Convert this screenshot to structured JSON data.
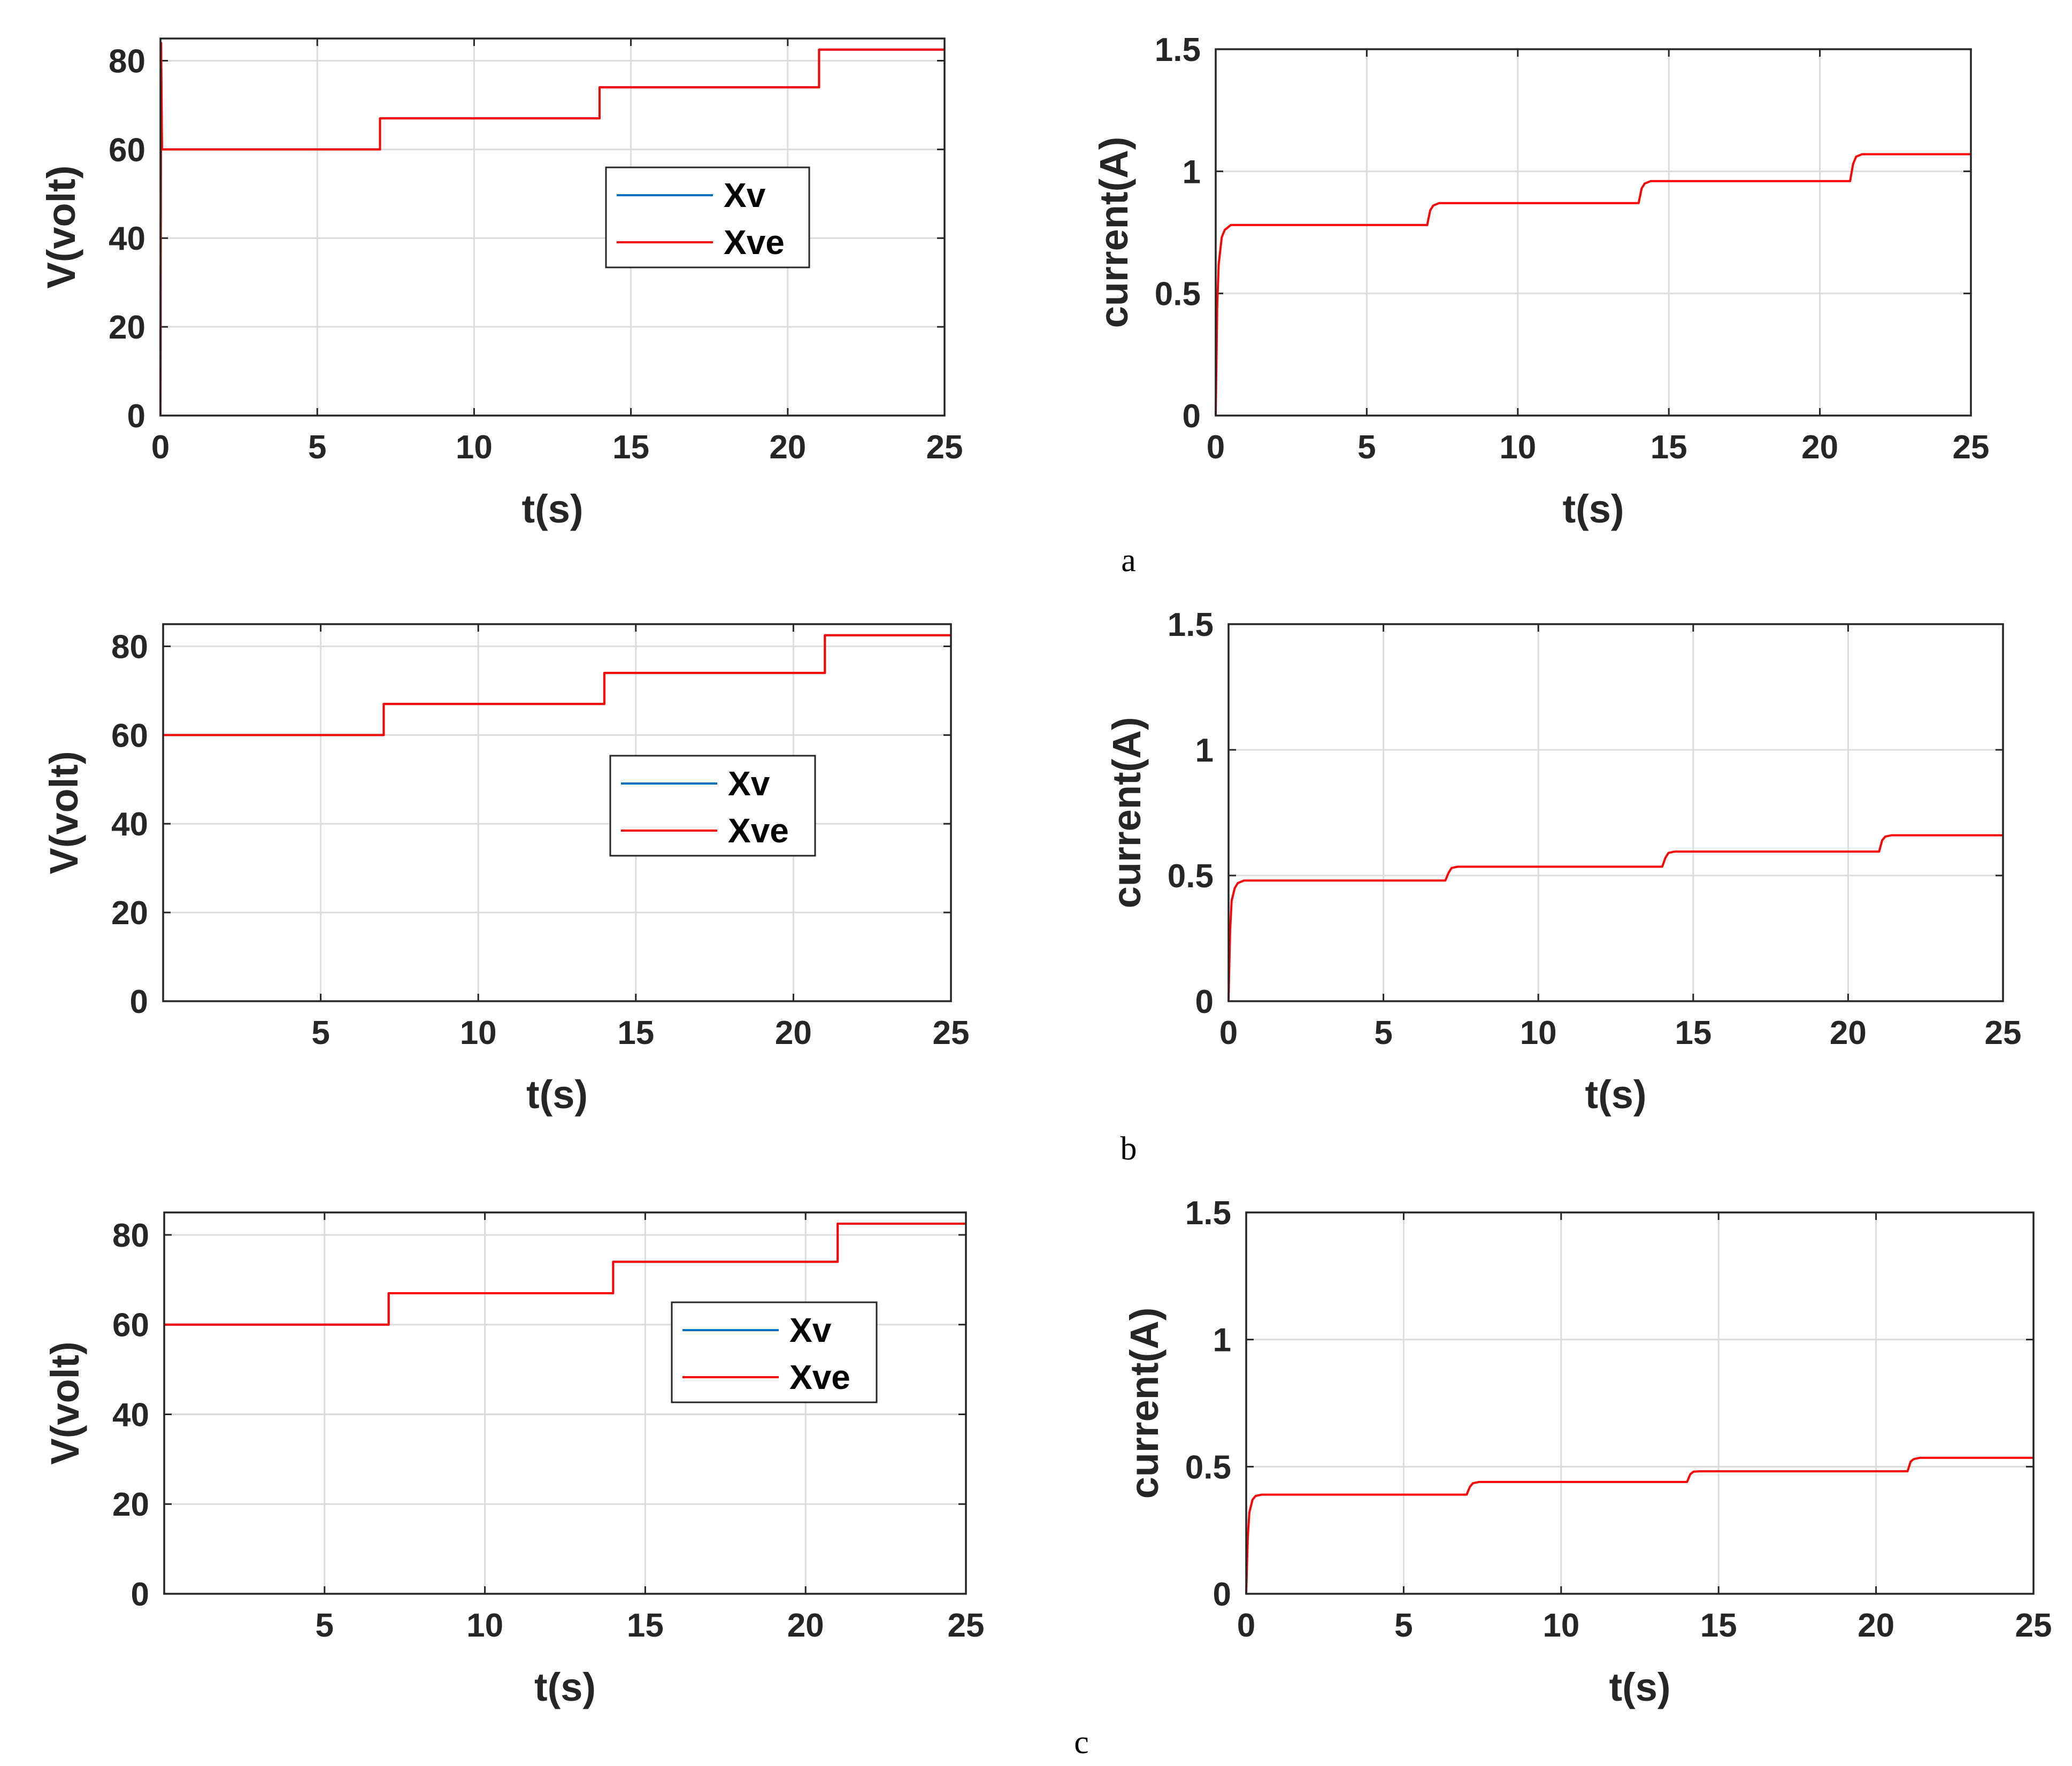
{
  "figure": {
    "captions": [
      "a",
      "b",
      "c"
    ]
  },
  "colors": {
    "Xv": "#0072BD",
    "Xve": "#FF0000",
    "grid": "#dcdcdc",
    "axis": "#262626"
  },
  "chart_data": [
    {
      "id": "a-voltage",
      "type": "line",
      "xlabel": "t(s)",
      "ylabel": "V(volt)",
      "xlim": [
        0,
        25
      ],
      "ylim": [
        0,
        85
      ],
      "xticks": [
        "0",
        "5",
        "10",
        "15",
        "20",
        "25"
      ],
      "yticks": [
        "0",
        "20",
        "40",
        "60",
        "80"
      ],
      "legend": {
        "entries": [
          "Xv",
          "Xve"
        ],
        "placement": "center-right"
      },
      "series": [
        {
          "name": "Xv",
          "x": [
            0,
            0.02,
            0.05,
            7,
            7,
            14,
            14,
            21,
            21,
            25
          ],
          "values": [
            0,
            84,
            60,
            60,
            67,
            67,
            74,
            74,
            82.5,
            82.5
          ]
        },
        {
          "name": "Xve",
          "x": [
            0,
            0.02,
            0.05,
            7,
            7,
            14,
            14,
            21,
            21,
            25
          ],
          "values": [
            0,
            84,
            60,
            60,
            67,
            67,
            74,
            74,
            82.5,
            82.5
          ]
        }
      ]
    },
    {
      "id": "a-current",
      "type": "line",
      "xlabel": "t(s)",
      "ylabel": "current(A)",
      "xlim": [
        0,
        25
      ],
      "ylim": [
        0,
        1.5
      ],
      "xticks": [
        "0",
        "5",
        "10",
        "15",
        "20",
        "25"
      ],
      "yticks": [
        "0",
        "0.5",
        "1",
        "1.5"
      ],
      "series": [
        {
          "name": "Xve",
          "x": [
            0,
            0.05,
            0.1,
            0.2,
            0.3,
            0.5,
            7,
            7.1,
            7.2,
            7.4,
            14,
            14.1,
            14.2,
            14.4,
            21,
            21.1,
            21.2,
            21.4,
            25
          ],
          "values": [
            0,
            0.45,
            0.62,
            0.73,
            0.76,
            0.78,
            0.78,
            0.84,
            0.86,
            0.87,
            0.87,
            0.93,
            0.95,
            0.96,
            0.96,
            1.03,
            1.06,
            1.07,
            1.07
          ]
        }
      ]
    },
    {
      "id": "b-voltage",
      "type": "line",
      "xlabel": "t(s)",
      "ylabel": "V(volt)",
      "xlim": [
        0,
        25
      ],
      "ylim": [
        0,
        85
      ],
      "xticks": [
        "5",
        "10",
        "15",
        "20",
        "25"
      ],
      "yticks": [
        "0",
        "20",
        "40",
        "60",
        "80"
      ],
      "legend": {
        "entries": [
          "Xv",
          "Xve"
        ],
        "placement": "center-right"
      },
      "series": [
        {
          "name": "Xv",
          "x": [
            0,
            7,
            7,
            14,
            14,
            21,
            21,
            25
          ],
          "values": [
            60,
            60,
            67,
            67,
            74,
            74,
            82.5,
            82.5
          ]
        },
        {
          "name": "Xve",
          "x": [
            0,
            7,
            7,
            14,
            14,
            21,
            21,
            25
          ],
          "values": [
            60,
            60,
            67,
            67,
            74,
            74,
            82.5,
            82.5
          ]
        }
      ]
    },
    {
      "id": "b-current",
      "type": "line",
      "xlabel": "t(s)",
      "ylabel": "current(A)",
      "xlim": [
        0,
        25
      ],
      "ylim": [
        0,
        1.5
      ],
      "xticks": [
        "0",
        "5",
        "10",
        "15",
        "20",
        "25"
      ],
      "yticks": [
        "0",
        "0.5",
        "1",
        "1.5"
      ],
      "series": [
        {
          "name": "Xve",
          "x": [
            0,
            0.05,
            0.1,
            0.2,
            0.3,
            0.5,
            7,
            7.1,
            7.2,
            7.4,
            14,
            14.1,
            14.2,
            14.4,
            21,
            21.1,
            21.2,
            21.4,
            25
          ],
          "values": [
            0,
            0.28,
            0.4,
            0.45,
            0.47,
            0.48,
            0.48,
            0.51,
            0.53,
            0.535,
            0.535,
            0.57,
            0.59,
            0.595,
            0.595,
            0.64,
            0.655,
            0.66,
            0.66
          ]
        }
      ]
    },
    {
      "id": "c-voltage",
      "type": "line",
      "xlabel": "t(s)",
      "ylabel": "V(volt)",
      "xlim": [
        0,
        25
      ],
      "ylim": [
        0,
        85
      ],
      "xticks": [
        "5",
        "10",
        "15",
        "20",
        "25"
      ],
      "yticks": [
        "0",
        "20",
        "40",
        "60",
        "80"
      ],
      "legend": {
        "entries": [
          "Xv",
          "Xve"
        ],
        "placement": "center-right"
      },
      "series": [
        {
          "name": "Xv",
          "x": [
            0,
            7,
            7,
            14,
            14,
            21,
            21,
            25
          ],
          "values": [
            60,
            60,
            67,
            67,
            74,
            74,
            82.5,
            82.5
          ]
        },
        {
          "name": "Xve",
          "x": [
            0,
            7,
            7,
            14,
            14,
            21,
            21,
            25
          ],
          "values": [
            60,
            60,
            67,
            67,
            74,
            74,
            82.5,
            82.5
          ]
        }
      ]
    },
    {
      "id": "c-current",
      "type": "line",
      "xlabel": "t(s)",
      "ylabel": "current(A)",
      "xlim": [
        0,
        25
      ],
      "ylim": [
        0,
        1.5
      ],
      "xticks": [
        "0",
        "5",
        "10",
        "15",
        "20",
        "25"
      ],
      "yticks": [
        "0",
        "0.5",
        "1",
        "1.5"
      ],
      "series": [
        {
          "name": "Xve",
          "x": [
            0,
            0.05,
            0.1,
            0.2,
            0.3,
            0.5,
            7,
            7.1,
            7.2,
            7.4,
            14,
            14.1,
            14.2,
            14.4,
            21,
            21.1,
            21.2,
            21.4,
            25
          ],
          "values": [
            0,
            0.22,
            0.32,
            0.37,
            0.385,
            0.39,
            0.39,
            0.42,
            0.435,
            0.44,
            0.44,
            0.47,
            0.48,
            0.482,
            0.482,
            0.52,
            0.53,
            0.535,
            0.535
          ]
        }
      ]
    }
  ]
}
